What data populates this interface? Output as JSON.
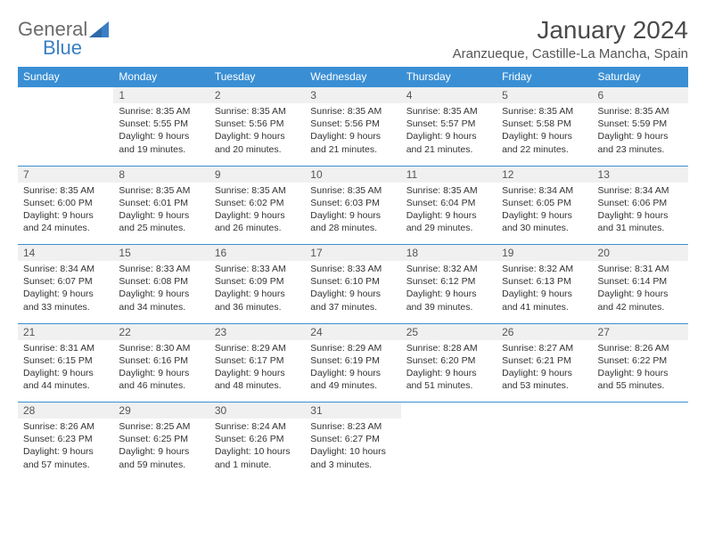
{
  "brand": {
    "general": "General",
    "blue": "Blue",
    "accent_color": "#3a8fd4",
    "text_color": "#6b6b6b"
  },
  "title": "January 2024",
  "location": "Aranzueque, Castille-La Mancha, Spain",
  "day_headers": [
    "Sunday",
    "Monday",
    "Tuesday",
    "Wednesday",
    "Thursday",
    "Friday",
    "Saturday"
  ],
  "header_bg": "#3a8fd4",
  "header_fg": "#ffffff",
  "daynum_bg": "#f0f0f0",
  "rule_color": "#3a8fd4",
  "body_font_size_pt": 8,
  "weeks": [
    {
      "nums": [
        "",
        "1",
        "2",
        "3",
        "4",
        "5",
        "6"
      ],
      "cells": [
        null,
        {
          "sunrise": "Sunrise: 8:35 AM",
          "sunset": "Sunset: 5:55 PM",
          "day1": "Daylight: 9 hours",
          "day2": "and 19 minutes."
        },
        {
          "sunrise": "Sunrise: 8:35 AM",
          "sunset": "Sunset: 5:56 PM",
          "day1": "Daylight: 9 hours",
          "day2": "and 20 minutes."
        },
        {
          "sunrise": "Sunrise: 8:35 AM",
          "sunset": "Sunset: 5:56 PM",
          "day1": "Daylight: 9 hours",
          "day2": "and 21 minutes."
        },
        {
          "sunrise": "Sunrise: 8:35 AM",
          "sunset": "Sunset: 5:57 PM",
          "day1": "Daylight: 9 hours",
          "day2": "and 21 minutes."
        },
        {
          "sunrise": "Sunrise: 8:35 AM",
          "sunset": "Sunset: 5:58 PM",
          "day1": "Daylight: 9 hours",
          "day2": "and 22 minutes."
        },
        {
          "sunrise": "Sunrise: 8:35 AM",
          "sunset": "Sunset: 5:59 PM",
          "day1": "Daylight: 9 hours",
          "day2": "and 23 minutes."
        }
      ]
    },
    {
      "nums": [
        "7",
        "8",
        "9",
        "10",
        "11",
        "12",
        "13"
      ],
      "cells": [
        {
          "sunrise": "Sunrise: 8:35 AM",
          "sunset": "Sunset: 6:00 PM",
          "day1": "Daylight: 9 hours",
          "day2": "and 24 minutes."
        },
        {
          "sunrise": "Sunrise: 8:35 AM",
          "sunset": "Sunset: 6:01 PM",
          "day1": "Daylight: 9 hours",
          "day2": "and 25 minutes."
        },
        {
          "sunrise": "Sunrise: 8:35 AM",
          "sunset": "Sunset: 6:02 PM",
          "day1": "Daylight: 9 hours",
          "day2": "and 26 minutes."
        },
        {
          "sunrise": "Sunrise: 8:35 AM",
          "sunset": "Sunset: 6:03 PM",
          "day1": "Daylight: 9 hours",
          "day2": "and 28 minutes."
        },
        {
          "sunrise": "Sunrise: 8:35 AM",
          "sunset": "Sunset: 6:04 PM",
          "day1": "Daylight: 9 hours",
          "day2": "and 29 minutes."
        },
        {
          "sunrise": "Sunrise: 8:34 AM",
          "sunset": "Sunset: 6:05 PM",
          "day1": "Daylight: 9 hours",
          "day2": "and 30 minutes."
        },
        {
          "sunrise": "Sunrise: 8:34 AM",
          "sunset": "Sunset: 6:06 PM",
          "day1": "Daylight: 9 hours",
          "day2": "and 31 minutes."
        }
      ]
    },
    {
      "nums": [
        "14",
        "15",
        "16",
        "17",
        "18",
        "19",
        "20"
      ],
      "cells": [
        {
          "sunrise": "Sunrise: 8:34 AM",
          "sunset": "Sunset: 6:07 PM",
          "day1": "Daylight: 9 hours",
          "day2": "and 33 minutes."
        },
        {
          "sunrise": "Sunrise: 8:33 AM",
          "sunset": "Sunset: 6:08 PM",
          "day1": "Daylight: 9 hours",
          "day2": "and 34 minutes."
        },
        {
          "sunrise": "Sunrise: 8:33 AM",
          "sunset": "Sunset: 6:09 PM",
          "day1": "Daylight: 9 hours",
          "day2": "and 36 minutes."
        },
        {
          "sunrise": "Sunrise: 8:33 AM",
          "sunset": "Sunset: 6:10 PM",
          "day1": "Daylight: 9 hours",
          "day2": "and 37 minutes."
        },
        {
          "sunrise": "Sunrise: 8:32 AM",
          "sunset": "Sunset: 6:12 PM",
          "day1": "Daylight: 9 hours",
          "day2": "and 39 minutes."
        },
        {
          "sunrise": "Sunrise: 8:32 AM",
          "sunset": "Sunset: 6:13 PM",
          "day1": "Daylight: 9 hours",
          "day2": "and 41 minutes."
        },
        {
          "sunrise": "Sunrise: 8:31 AM",
          "sunset": "Sunset: 6:14 PM",
          "day1": "Daylight: 9 hours",
          "day2": "and 42 minutes."
        }
      ]
    },
    {
      "nums": [
        "21",
        "22",
        "23",
        "24",
        "25",
        "26",
        "27"
      ],
      "cells": [
        {
          "sunrise": "Sunrise: 8:31 AM",
          "sunset": "Sunset: 6:15 PM",
          "day1": "Daylight: 9 hours",
          "day2": "and 44 minutes."
        },
        {
          "sunrise": "Sunrise: 8:30 AM",
          "sunset": "Sunset: 6:16 PM",
          "day1": "Daylight: 9 hours",
          "day2": "and 46 minutes."
        },
        {
          "sunrise": "Sunrise: 8:29 AM",
          "sunset": "Sunset: 6:17 PM",
          "day1": "Daylight: 9 hours",
          "day2": "and 48 minutes."
        },
        {
          "sunrise": "Sunrise: 8:29 AM",
          "sunset": "Sunset: 6:19 PM",
          "day1": "Daylight: 9 hours",
          "day2": "and 49 minutes."
        },
        {
          "sunrise": "Sunrise: 8:28 AM",
          "sunset": "Sunset: 6:20 PM",
          "day1": "Daylight: 9 hours",
          "day2": "and 51 minutes."
        },
        {
          "sunrise": "Sunrise: 8:27 AM",
          "sunset": "Sunset: 6:21 PM",
          "day1": "Daylight: 9 hours",
          "day2": "and 53 minutes."
        },
        {
          "sunrise": "Sunrise: 8:26 AM",
          "sunset": "Sunset: 6:22 PM",
          "day1": "Daylight: 9 hours",
          "day2": "and 55 minutes."
        }
      ]
    },
    {
      "nums": [
        "28",
        "29",
        "30",
        "31",
        "",
        "",
        ""
      ],
      "cells": [
        {
          "sunrise": "Sunrise: 8:26 AM",
          "sunset": "Sunset: 6:23 PM",
          "day1": "Daylight: 9 hours",
          "day2": "and 57 minutes."
        },
        {
          "sunrise": "Sunrise: 8:25 AM",
          "sunset": "Sunset: 6:25 PM",
          "day1": "Daylight: 9 hours",
          "day2": "and 59 minutes."
        },
        {
          "sunrise": "Sunrise: 8:24 AM",
          "sunset": "Sunset: 6:26 PM",
          "day1": "Daylight: 10 hours",
          "day2": "and 1 minute."
        },
        {
          "sunrise": "Sunrise: 8:23 AM",
          "sunset": "Sunset: 6:27 PM",
          "day1": "Daylight: 10 hours",
          "day2": "and 3 minutes."
        },
        null,
        null,
        null
      ]
    }
  ]
}
